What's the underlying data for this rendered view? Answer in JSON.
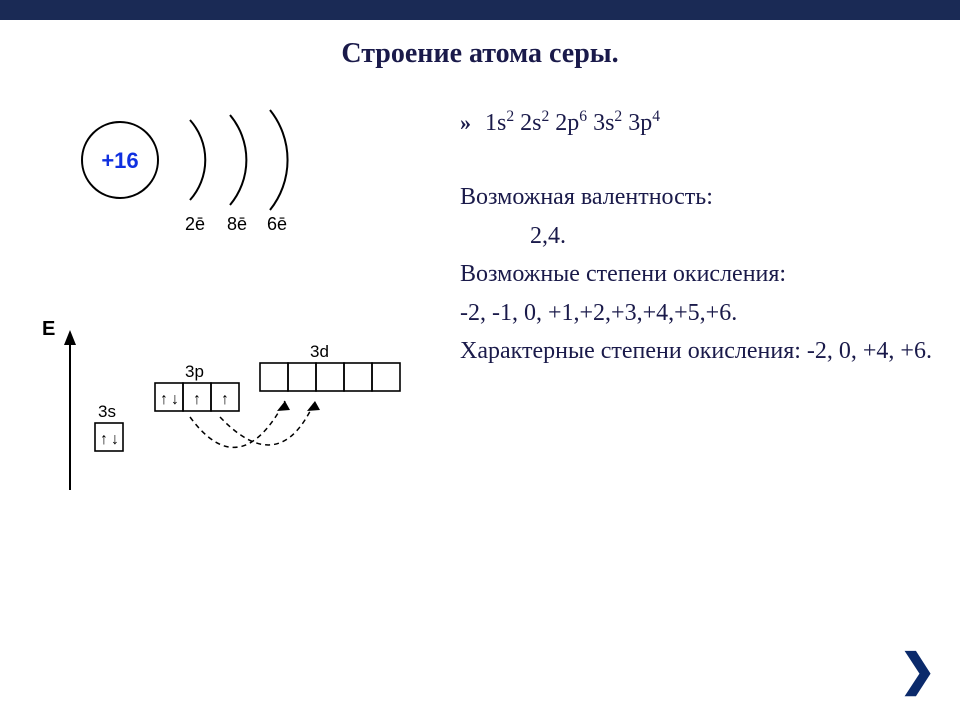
{
  "title": "Строение атома серы.",
  "electron_formula_html": "1s<sup>2</sup> 2s<sup>2</sup> 2p<sup>6</sup> 3s<sup>2</sup> 3p<sup>4</sup>",
  "valence_label": "Возможная валентность:",
  "valence_values": "2,4.",
  "oxidation_possible_label": "Возможные степени окисления:",
  "oxidation_possible_values": "-2, -1, 0, +1,+2,+3,+4,+5,+6.",
  "oxidation_characteristic": "Характерные степени окисления: -2, 0, +4, +6.",
  "shell_diagram": {
    "nucleus_label": "+16",
    "nucleus_color": "#1030e0",
    "shell_labels": [
      "2ē",
      "8ē",
      "6ē"
    ],
    "circle_stroke": "#000000",
    "text_color": "#000000",
    "label_fontsize": 18,
    "nucleus_fontsize": 22
  },
  "orbital_diagram": {
    "energy_axis_label": "E",
    "sublevels": {
      "s": {
        "label": "3s",
        "boxes": 1,
        "arrows": [
          [
            "up",
            "down"
          ]
        ]
      },
      "p": {
        "label": "3p",
        "boxes": 3,
        "arrows": [
          [
            "up",
            "down"
          ],
          [
            "up"
          ],
          [
            "up"
          ]
        ]
      },
      "d": {
        "label": "3d",
        "boxes": 5,
        "arrows": [
          [],
          [],
          [],
          [],
          []
        ]
      }
    },
    "box_size": 28,
    "box_stroke": "#000000",
    "arrow_fontsize": 16,
    "label_fontsize": 17,
    "axis_color": "#000000",
    "dash_color": "#000000",
    "transition_arrow_color": "#000000"
  },
  "nav": {
    "next_glyph": "❯"
  },
  "colors": {
    "background": "#ffffff",
    "title": "#1a1a4a",
    "body_text": "#1a1a4a",
    "topbar": "#1a2a55"
  }
}
